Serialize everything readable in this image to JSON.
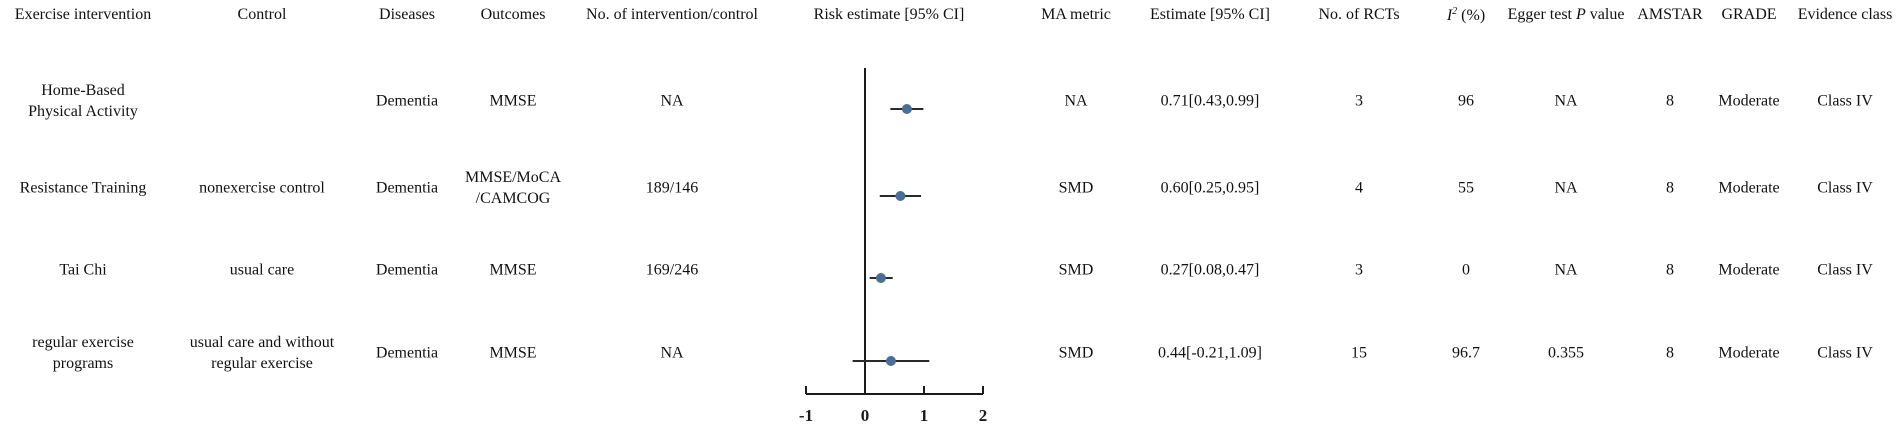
{
  "headers": {
    "exercise": "Exercise intervention",
    "control": "Control",
    "diseases": "Diseases",
    "outcomes": "Outcomes",
    "n_interv_control": "No. of intervention/control",
    "risk_estimate": "Risk estimate [95% CI]",
    "ma_metric": "MA metric",
    "estimate": "Estimate [95% CI]",
    "n_rcts": "No. of RCTs",
    "i2_symbol": "I",
    "i2_sup": "2",
    "i2_unit": "(%)",
    "egger_pre": "Egger test",
    "egger_p": "P",
    "egger_post": "value",
    "amstar": "AMSTAR",
    "grade": "GRADE",
    "evidence_class": "Evidence class"
  },
  "rows": [
    {
      "exercise": [
        "Home-Based",
        "Physical Activity"
      ],
      "control": [
        ""
      ],
      "disease": "Dementia",
      "outcome": [
        "MMSE"
      ],
      "n": "NA",
      "ma_metric": "NA",
      "estimate_text": "0.71[0.43,0.99]",
      "rcts": "3",
      "i2": "96",
      "egger": "NA",
      "amstar": "8",
      "grade": "Moderate",
      "evidence": "Class IV"
    },
    {
      "exercise": [
        "Resistance Training"
      ],
      "control": [
        "nonexercise control"
      ],
      "disease": "Dementia",
      "outcome": [
        "MMSE/MoCA",
        "/CAMCOG"
      ],
      "n": "189/146",
      "ma_metric": "SMD",
      "estimate_text": "0.60[0.25,0.95]",
      "rcts": "4",
      "i2": "55",
      "egger": "NA",
      "amstar": "8",
      "grade": "Moderate",
      "evidence": "Class IV"
    },
    {
      "exercise": [
        "Tai Chi"
      ],
      "control": [
        "usual care"
      ],
      "disease": "Dementia",
      "outcome": [
        "MMSE"
      ],
      "n": "169/246",
      "ma_metric": "SMD",
      "estimate_text": "0.27[0.08,0.47]",
      "rcts": "3",
      "i2": "0",
      "egger": "NA",
      "amstar": "8",
      "grade": "Moderate",
      "evidence": "Class IV"
    },
    {
      "exercise": [
        "regular exercise",
        "programs"
      ],
      "control": [
        "usual care and without",
        "regular exercise"
      ],
      "disease": "Dementia",
      "outcome": [
        "MMSE"
      ],
      "n": "NA",
      "ma_metric": "SMD",
      "estimate_text": "0.44[-0.21,1.09]",
      "rcts": "15",
      "i2": "96.7",
      "egger": "0.355",
      "amstar": "8",
      "grade": "Moderate",
      "evidence": "Class IV"
    }
  ],
  "chart_data": {
    "type": "forest",
    "title": "Risk estimate [95% CI]",
    "xlim": [
      -1,
      2
    ],
    "ticks": [
      -1,
      0,
      1,
      2
    ],
    "tick_labels": [
      "-1",
      "0",
      "1",
      "2"
    ],
    "reference_line": 0,
    "series": [
      {
        "name": "Home-Based Physical Activity",
        "estimate": 0.71,
        "lower": 0.43,
        "upper": 0.99
      },
      {
        "name": "Resistance Training",
        "estimate": 0.6,
        "lower": 0.25,
        "upper": 0.95
      },
      {
        "name": "Tai Chi",
        "estimate": 0.27,
        "lower": 0.08,
        "upper": 0.47
      },
      {
        "name": "regular exercise programs",
        "estimate": 0.44,
        "lower": -0.21,
        "upper": 1.09
      }
    ],
    "colors": {
      "marker": "#4a6f96",
      "line": "#1a1a1a"
    }
  }
}
